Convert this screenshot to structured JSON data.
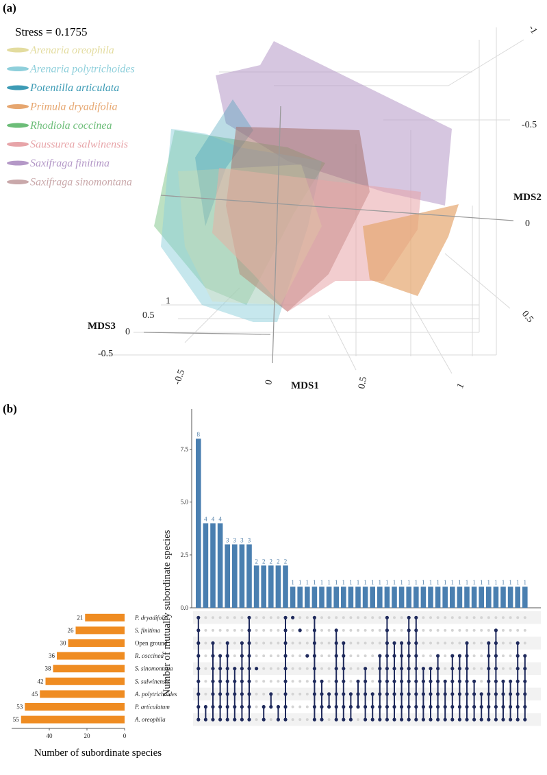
{
  "panel_a": {
    "label": "(a)",
    "stress_label": "Stress = 0.1755",
    "axis_titles": {
      "x": "MDS1",
      "y": "MDS2",
      "z": "MDS3"
    },
    "x_ticks": [
      "-0.5",
      "0",
      "0.5",
      "1"
    ],
    "y_ticks": [
      "-1",
      "-0.5",
      "0",
      "0.5"
    ],
    "z_ticks": [
      "1",
      "0.5",
      "0",
      "-0.5"
    ],
    "legend": [
      {
        "name": "Arenaria oreophila",
        "color": "#e3dc9f"
      },
      {
        "name": "Arenaria polytrichoides",
        "color": "#8ecfdb"
      },
      {
        "name": "Potentilla articulata",
        "color": "#3d9bb5"
      },
      {
        "name": "Primula dryadifolia",
        "color": "#e6a66f"
      },
      {
        "name": "Rhodiola coccinea",
        "color": "#6cbd78"
      },
      {
        "name": "Saussurea salwinensis",
        "color": "#e7a4a8"
      },
      {
        "name": "Saxifraga finitima",
        "color": "#b498c7"
      },
      {
        "name": "Saxifraga sinomontana",
        "color": "#c9a8aa"
      }
    ]
  },
  "panel_b": {
    "label": "(b)",
    "ylabel": "Number of mutually subordinate species",
    "xlabel_sets": "Number of subordinate species",
    "bar_color": "#4a7fb0",
    "set_bar_color": "#ef8c22",
    "dot_color": "#1f2a5c"
  },
  "chart_data": {
    "type": "bar",
    "title": "",
    "ylabel": "Number of mutually subordinate species",
    "ylim": [
      0,
      9.4
    ],
    "yticks": [
      0.0,
      2.5,
      5.0,
      7.5
    ],
    "intersections": [
      {
        "value": 8,
        "sets": [
          0,
          1,
          2,
          3,
          4,
          5,
          6,
          7,
          8
        ]
      },
      {
        "value": 4,
        "sets": [
          7,
          8
        ]
      },
      {
        "value": 4,
        "sets": [
          2,
          3,
          4,
          5,
          6,
          7,
          8
        ]
      },
      {
        "value": 4,
        "sets": [
          3,
          4,
          5,
          6,
          7,
          8
        ]
      },
      {
        "value": 3,
        "sets": [
          2,
          3,
          4,
          5,
          6,
          7,
          8
        ]
      },
      {
        "value": 3,
        "sets": [
          4,
          5,
          6,
          7,
          8
        ]
      },
      {
        "value": 3,
        "sets": [
          2,
          3,
          4,
          5,
          6,
          7,
          8
        ]
      },
      {
        "value": 3,
        "sets": [
          0,
          1,
          2,
          3,
          4,
          5,
          6,
          7,
          8
        ]
      },
      {
        "value": 2,
        "sets": [
          4
        ]
      },
      {
        "value": 2,
        "sets": [
          7,
          8
        ]
      },
      {
        "value": 2,
        "sets": [
          6,
          7
        ]
      },
      {
        "value": 2,
        "sets": [
          7,
          8
        ]
      },
      {
        "value": 2,
        "sets": [
          0,
          1,
          2,
          3,
          4,
          5,
          6,
          7,
          8
        ]
      },
      {
        "value": 1,
        "sets": [
          0
        ]
      },
      {
        "value": 1,
        "sets": [
          1
        ]
      },
      {
        "value": 1,
        "sets": [
          3
        ]
      },
      {
        "value": 1,
        "sets": [
          0,
          1,
          2,
          3,
          4,
          5,
          6,
          7,
          8
        ]
      },
      {
        "value": 1,
        "sets": [
          5,
          6,
          7,
          8
        ]
      },
      {
        "value": 1,
        "sets": [
          6,
          7
        ]
      },
      {
        "value": 1,
        "sets": [
          1,
          2,
          3,
          4,
          5,
          6,
          7,
          8
        ]
      },
      {
        "value": 1,
        "sets": [
          2,
          3,
          4,
          5,
          6,
          7,
          8
        ]
      },
      {
        "value": 1,
        "sets": [
          6,
          7,
          8
        ]
      },
      {
        "value": 1,
        "sets": [
          5,
          6,
          7
        ]
      },
      {
        "value": 1,
        "sets": [
          4,
          5,
          6,
          7,
          8
        ]
      },
      {
        "value": 1,
        "sets": [
          6,
          7,
          8
        ]
      },
      {
        "value": 1,
        "sets": [
          3,
          4,
          5,
          6,
          7,
          8
        ]
      },
      {
        "value": 1,
        "sets": [
          0,
          1,
          2,
          3,
          4,
          5,
          6,
          7,
          8
        ]
      },
      {
        "value": 1,
        "sets": [
          2,
          3,
          4,
          5,
          6,
          7,
          8
        ]
      },
      {
        "value": 1,
        "sets": [
          2,
          3,
          4,
          5,
          6,
          7,
          8
        ]
      },
      {
        "value": 1,
        "sets": [
          0,
          1,
          2,
          3,
          4,
          5,
          6,
          7,
          8
        ]
      },
      {
        "value": 1,
        "sets": [
          0,
          1,
          2,
          3,
          4,
          5,
          6,
          7,
          8
        ]
      },
      {
        "value": 1,
        "sets": [
          4,
          5,
          6,
          7,
          8
        ]
      },
      {
        "value": 1,
        "sets": [
          4,
          5,
          6,
          7,
          8
        ]
      },
      {
        "value": 1,
        "sets": [
          3,
          4,
          5,
          6,
          7,
          8
        ]
      },
      {
        "value": 1,
        "sets": [
          5,
          6,
          7,
          8
        ]
      },
      {
        "value": 1,
        "sets": [
          3,
          4,
          5,
          6,
          7,
          8
        ]
      },
      {
        "value": 1,
        "sets": [
          3,
          4,
          5,
          6,
          7,
          8
        ]
      },
      {
        "value": 1,
        "sets": [
          2,
          3,
          4,
          5,
          6,
          7,
          8
        ]
      },
      {
        "value": 1,
        "sets": [
          5,
          6,
          7,
          8
        ]
      },
      {
        "value": 1,
        "sets": [
          6,
          7,
          8
        ]
      },
      {
        "value": 1,
        "sets": [
          2,
          3,
          4,
          5,
          6,
          7,
          8
        ]
      },
      {
        "value": 1,
        "sets": [
          1,
          2,
          3,
          4,
          5,
          6,
          7,
          8
        ]
      },
      {
        "value": 1,
        "sets": [
          5,
          6,
          7,
          8
        ]
      },
      {
        "value": 1,
        "sets": [
          5,
          6,
          7,
          8
        ]
      },
      {
        "value": 1,
        "sets": [
          2,
          3,
          4,
          5,
          6,
          7,
          8
        ]
      },
      {
        "value": 1,
        "sets": [
          3,
          4,
          5,
          6,
          7,
          8
        ]
      }
    ],
    "sets": [
      {
        "name": "P. dryadifolia",
        "size": 21
      },
      {
        "name": "S. finitima",
        "size": 26
      },
      {
        "name": "Open ground",
        "size": 30
      },
      {
        "name": "R. coccinea",
        "size": 36
      },
      {
        "name": "S. sinomontana",
        "size": 38
      },
      {
        "name": "S. salwinensis",
        "size": 42
      },
      {
        "name": "A. polytrichoides",
        "size": 45
      },
      {
        "name": "P. articulatum",
        "size": 53
      },
      {
        "name": "A. oreophila",
        "size": 55
      }
    ],
    "set_size_ticks": [
      40,
      20,
      0
    ]
  }
}
